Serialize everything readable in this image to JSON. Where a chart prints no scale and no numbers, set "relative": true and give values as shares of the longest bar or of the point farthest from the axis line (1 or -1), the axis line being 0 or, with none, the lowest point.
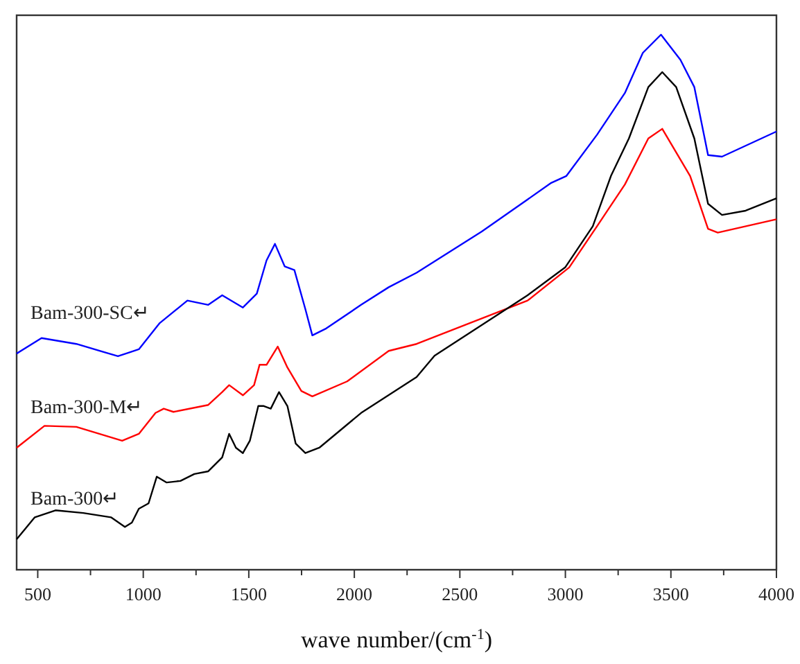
{
  "chart_data": {
    "type": "line",
    "xlabel": "wave number/(cm$^{-1}$)",
    "relative": true,
    "marker": "none",
    "line_style": "solid",
    "grid": false,
    "xlim": [
      400,
      4000
    ],
    "xticks": [
      500,
      {
        "value": 750,
        "label": null
      },
      1000,
      {
        "value": 1250,
        "label": null
      },
      1500,
      {
        "value": 1750,
        "label": null
      },
      2000,
      {
        "value": 2250,
        "label": null
      },
      2500,
      {
        "value": 2750,
        "label": null
      },
      3000,
      {
        "value": 3250,
        "label": null
      },
      3500,
      {
        "value": 3750,
        "label": null
      },
      4000
    ],
    "series": [
      {
        "name": "Bam-300-SC↵",
        "color": "#0000ff",
        "x": [
          400,
          518,
          683,
          880,
          979,
          1078,
          1209,
          1308,
          1374,
          1472,
          1538,
          1584,
          1624,
          1670,
          1716,
          1768,
          1801,
          1867,
          2032,
          2163,
          2295,
          2604,
          2933,
          3005,
          3150,
          3282,
          3367,
          3453,
          3545,
          3611,
          3676,
          3742,
          4000
        ],
        "values": [
          0.404,
          0.433,
          0.422,
          0.399,
          0.412,
          0.461,
          0.503,
          0.495,
          0.513,
          0.49,
          0.516,
          0.578,
          0.609,
          0.567,
          0.56,
          0.487,
          0.438,
          0.451,
          0.495,
          0.528,
          0.555,
          0.632,
          0.723,
          0.736,
          0.813,
          0.891,
          0.966,
          1.0,
          0.953,
          0.902,
          0.775,
          0.772,
          0.819
        ]
      },
      {
        "name": "Bam-300-M↵",
        "color": "#ff0000",
        "x": [
          400,
          532,
          683,
          900,
          979,
          1058,
          1097,
          1143,
          1308,
          1374,
          1407,
          1472,
          1525,
          1551,
          1584,
          1637,
          1683,
          1749,
          1801,
          1966,
          2163,
          2295,
          2821,
          3018,
          3150,
          3282,
          3393,
          3459,
          3591,
          3676,
          3722,
          4000
        ],
        "values": [
          0.228,
          0.269,
          0.267,
          0.241,
          0.254,
          0.293,
          0.301,
          0.295,
          0.308,
          0.332,
          0.345,
          0.326,
          0.345,
          0.383,
          0.383,
          0.417,
          0.378,
          0.334,
          0.324,
          0.352,
          0.409,
          0.422,
          0.503,
          0.565,
          0.642,
          0.72,
          0.806,
          0.824,
          0.736,
          0.637,
          0.63,
          0.655
        ]
      },
      {
        "name": "Bam-300↵",
        "color": "#000000",
        "x": [
          400,
          486,
          584,
          716,
          847,
          913,
          946,
          979,
          1025,
          1064,
          1111,
          1176,
          1242,
          1308,
          1374,
          1407,
          1439,
          1472,
          1505,
          1545,
          1571,
          1604,
          1643,
          1683,
          1722,
          1768,
          1834,
          2032,
          2295,
          2380,
          2821,
          2999,
          3130,
          3216,
          3301,
          3393,
          3459,
          3525,
          3611,
          3676,
          3742,
          3854,
          4000
        ],
        "values": [
          0.057,
          0.098,
          0.111,
          0.106,
          0.098,
          0.08,
          0.088,
          0.114,
          0.124,
          0.174,
          0.163,
          0.166,
          0.179,
          0.184,
          0.21,
          0.254,
          0.228,
          0.218,
          0.241,
          0.306,
          0.306,
          0.301,
          0.332,
          0.306,
          0.236,
          0.218,
          0.228,
          0.293,
          0.36,
          0.4,
          0.513,
          0.565,
          0.642,
          0.736,
          0.806,
          0.902,
          0.93,
          0.902,
          0.806,
          0.684,
          0.663,
          0.671,
          0.694
        ]
      }
    ]
  }
}
